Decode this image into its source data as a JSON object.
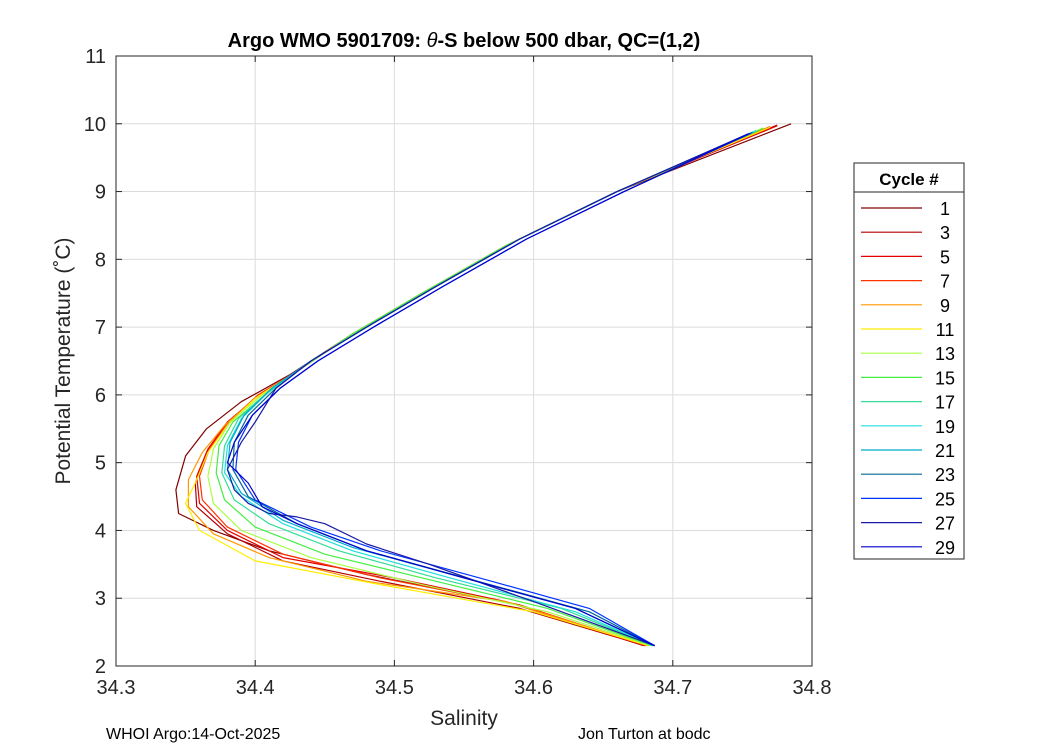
{
  "chart_data": {
    "type": "line",
    "title_prefix": "Argo WMO 5901709: ",
    "title_theta": "θ",
    "title_suffix": "-S below 500 dbar,  QC=(1,2)",
    "xlabel": "Salinity",
    "ylabel": "Potential Temperature (˚C)",
    "xlim": [
      34.3,
      34.8
    ],
    "ylim": [
      2,
      11
    ],
    "xticks": [
      "34.3",
      "34.4",
      "34.5",
      "34.6",
      "34.7",
      "34.8"
    ],
    "yticks": [
      "2",
      "3",
      "4",
      "5",
      "6",
      "7",
      "8",
      "9",
      "10",
      "11"
    ],
    "grid": true,
    "legend_title": "Cycle #",
    "legend_placement": "right-outside",
    "series": [
      {
        "name": "1",
        "color": "#800000",
        "values": [
          [
            34.679,
            2.3
          ],
          [
            34.59,
            2.9
          ],
          [
            34.48,
            3.35
          ],
          [
            34.41,
            3.7
          ],
          [
            34.37,
            4.0
          ],
          [
            34.345,
            4.25
          ],
          [
            34.343,
            4.6
          ],
          [
            34.35,
            5.1
          ],
          [
            34.365,
            5.5
          ],
          [
            34.39,
            5.9
          ],
          [
            34.425,
            6.3
          ],
          [
            34.47,
            6.9
          ],
          [
            34.52,
            7.5
          ],
          [
            34.58,
            8.2
          ],
          [
            34.66,
            9.0
          ],
          [
            34.785,
            10.0
          ]
        ]
      },
      {
        "name": "3",
        "color": "#b30000",
        "values": [
          [
            34.68,
            2.3
          ],
          [
            34.59,
            2.85
          ],
          [
            34.49,
            3.25
          ],
          [
            34.42,
            3.55
          ],
          [
            34.38,
            3.95
          ],
          [
            34.358,
            4.35
          ],
          [
            34.357,
            4.7
          ],
          [
            34.365,
            5.15
          ],
          [
            34.378,
            5.55
          ],
          [
            34.4,
            5.95
          ],
          [
            34.43,
            6.35
          ],
          [
            34.47,
            6.9
          ],
          [
            34.52,
            7.5
          ],
          [
            34.58,
            8.2
          ],
          [
            34.66,
            9.0
          ],
          [
            34.775,
            9.98
          ]
        ]
      },
      {
        "name": "5",
        "color": "#e60000",
        "values": [
          [
            34.68,
            2.3
          ],
          [
            34.58,
            2.95
          ],
          [
            34.5,
            3.3
          ],
          [
            34.42,
            3.6
          ],
          [
            34.38,
            4.0
          ],
          [
            34.36,
            4.4
          ],
          [
            34.358,
            4.8
          ],
          [
            34.366,
            5.2
          ],
          [
            34.38,
            5.6
          ],
          [
            34.4,
            5.95
          ],
          [
            34.43,
            6.35
          ],
          [
            34.47,
            6.9
          ],
          [
            34.52,
            7.5
          ],
          [
            34.58,
            8.2
          ],
          [
            34.66,
            9.0
          ],
          [
            34.775,
            9.97
          ]
        ]
      },
      {
        "name": "7",
        "color": "#ff3300",
        "values": [
          [
            34.681,
            2.3
          ],
          [
            34.59,
            2.9
          ],
          [
            34.49,
            3.3
          ],
          [
            34.42,
            3.65
          ],
          [
            34.38,
            4.05
          ],
          [
            34.362,
            4.45
          ],
          [
            34.36,
            4.8
          ],
          [
            34.367,
            5.2
          ],
          [
            34.381,
            5.6
          ],
          [
            34.402,
            6.0
          ],
          [
            34.43,
            6.35
          ],
          [
            34.47,
            6.9
          ],
          [
            34.52,
            7.5
          ],
          [
            34.58,
            8.2
          ],
          [
            34.66,
            9.0
          ],
          [
            34.77,
            9.96
          ]
        ]
      },
      {
        "name": "9",
        "color": "#ff9900",
        "values": [
          [
            34.682,
            2.3
          ],
          [
            34.58,
            2.95
          ],
          [
            34.48,
            3.25
          ],
          [
            34.41,
            3.6
          ],
          [
            34.37,
            3.95
          ],
          [
            34.352,
            4.35
          ],
          [
            34.352,
            4.75
          ],
          [
            34.362,
            5.15
          ],
          [
            34.378,
            5.55
          ],
          [
            34.4,
            5.95
          ],
          [
            34.43,
            6.35
          ],
          [
            34.47,
            6.9
          ],
          [
            34.52,
            7.5
          ],
          [
            34.58,
            8.2
          ],
          [
            34.66,
            9.0
          ],
          [
            34.77,
            9.95
          ]
        ]
      },
      {
        "name": "11",
        "color": "#ffee00",
        "values": [
          [
            34.683,
            2.3
          ],
          [
            34.6,
            2.8
          ],
          [
            34.49,
            3.2
          ],
          [
            34.4,
            3.55
          ],
          [
            34.36,
            4.0
          ],
          [
            34.35,
            4.4
          ],
          [
            34.358,
            4.75
          ],
          [
            34.366,
            5.15
          ],
          [
            34.38,
            5.55
          ],
          [
            34.4,
            5.95
          ],
          [
            34.43,
            6.35
          ],
          [
            34.47,
            6.9
          ],
          [
            34.52,
            7.5
          ],
          [
            34.58,
            8.2
          ],
          [
            34.66,
            9.0
          ],
          [
            34.77,
            9.95
          ]
        ]
      },
      {
        "name": "13",
        "color": "#aaff44",
        "values": [
          [
            34.684,
            2.3
          ],
          [
            34.61,
            2.8
          ],
          [
            34.52,
            3.2
          ],
          [
            34.44,
            3.6
          ],
          [
            34.39,
            4.0
          ],
          [
            34.37,
            4.4
          ],
          [
            34.366,
            4.8
          ],
          [
            34.37,
            5.2
          ],
          [
            34.382,
            5.6
          ],
          [
            34.402,
            5.95
          ],
          [
            34.43,
            6.35
          ],
          [
            34.47,
            6.9
          ],
          [
            34.52,
            7.5
          ],
          [
            34.58,
            8.2
          ],
          [
            34.66,
            9.0
          ],
          [
            34.765,
            9.94
          ]
        ]
      },
      {
        "name": "15",
        "color": "#44ee44",
        "values": [
          [
            34.685,
            2.3
          ],
          [
            34.61,
            2.85
          ],
          [
            34.52,
            3.3
          ],
          [
            34.45,
            3.65
          ],
          [
            34.4,
            4.05
          ],
          [
            34.378,
            4.45
          ],
          [
            34.372,
            4.85
          ],
          [
            34.374,
            5.25
          ],
          [
            34.384,
            5.6
          ],
          [
            34.404,
            5.95
          ],
          [
            34.43,
            6.35
          ],
          [
            34.47,
            6.9
          ],
          [
            34.52,
            7.5
          ],
          [
            34.58,
            8.2
          ],
          [
            34.66,
            9.0
          ],
          [
            34.765,
            9.93
          ]
        ]
      },
      {
        "name": "17",
        "color": "#33dd99",
        "values": [
          [
            34.686,
            2.3
          ],
          [
            34.62,
            2.85
          ],
          [
            34.53,
            3.3
          ],
          [
            34.46,
            3.7
          ],
          [
            34.41,
            4.1
          ],
          [
            34.385,
            4.45
          ],
          [
            34.376,
            4.85
          ],
          [
            34.378,
            5.25
          ],
          [
            34.388,
            5.65
          ],
          [
            34.41,
            6.05
          ],
          [
            34.44,
            6.5
          ],
          [
            34.48,
            7.0
          ],
          [
            34.53,
            7.6
          ],
          [
            34.59,
            8.3
          ],
          [
            34.66,
            9.0
          ],
          [
            34.76,
            9.9
          ]
        ]
      },
      {
        "name": "19",
        "color": "#22dddd",
        "values": [
          [
            34.686,
            2.3
          ],
          [
            34.63,
            2.8
          ],
          [
            34.54,
            3.3
          ],
          [
            34.47,
            3.7
          ],
          [
            34.42,
            4.1
          ],
          [
            34.39,
            4.5
          ],
          [
            34.378,
            4.85
          ],
          [
            34.38,
            5.25
          ],
          [
            34.39,
            5.65
          ],
          [
            34.41,
            6.05
          ],
          [
            34.44,
            6.5
          ],
          [
            34.48,
            7.0
          ],
          [
            34.53,
            7.6
          ],
          [
            34.59,
            8.3
          ],
          [
            34.66,
            9.0
          ],
          [
            34.76,
            9.9
          ]
        ]
      },
      {
        "name": "21",
        "color": "#00aacc",
        "values": [
          [
            34.686,
            2.3
          ],
          [
            34.63,
            2.85
          ],
          [
            34.55,
            3.3
          ],
          [
            34.47,
            3.75
          ],
          [
            34.42,
            4.15
          ],
          [
            34.39,
            4.55
          ],
          [
            34.38,
            4.9
          ],
          [
            34.382,
            5.3
          ],
          [
            34.392,
            5.7
          ],
          [
            34.412,
            6.1
          ],
          [
            34.44,
            6.5
          ],
          [
            34.48,
            7.0
          ],
          [
            34.53,
            7.6
          ],
          [
            34.59,
            8.3
          ],
          [
            34.66,
            9.0
          ],
          [
            34.758,
            9.88
          ]
        ]
      },
      {
        "name": "23",
        "color": "#006699",
        "values": [
          [
            34.687,
            2.3
          ],
          [
            34.64,
            2.8
          ],
          [
            34.56,
            3.25
          ],
          [
            34.48,
            3.7
          ],
          [
            34.43,
            4.1
          ],
          [
            34.395,
            4.5
          ],
          [
            34.384,
            4.9
          ],
          [
            34.385,
            5.3
          ],
          [
            34.395,
            5.7
          ],
          [
            34.415,
            6.1
          ],
          [
            34.44,
            6.5
          ],
          [
            34.48,
            7.0
          ],
          [
            34.53,
            7.6
          ],
          [
            34.59,
            8.3
          ],
          [
            34.66,
            9.0
          ],
          [
            34.757,
            9.87
          ]
        ]
      },
      {
        "name": "25",
        "color": "#0033ff",
        "values": [
          [
            34.687,
            2.3
          ],
          [
            34.64,
            2.85
          ],
          [
            34.57,
            3.25
          ],
          [
            34.49,
            3.7
          ],
          [
            34.44,
            4.05
          ],
          [
            34.4,
            4.45
          ],
          [
            34.386,
            4.9
          ],
          [
            34.388,
            5.3
          ],
          [
            34.398,
            5.7
          ],
          [
            34.418,
            6.1
          ],
          [
            34.445,
            6.5
          ],
          [
            34.485,
            7.0
          ],
          [
            34.535,
            7.6
          ],
          [
            34.595,
            8.3
          ],
          [
            34.665,
            9.0
          ],
          [
            34.756,
            9.86
          ]
        ]
      },
      {
        "name": "27",
        "color": "#1a1aa6",
        "values": [
          [
            34.687,
            2.3
          ],
          [
            34.6,
            2.95
          ],
          [
            34.525,
            3.5
          ],
          [
            34.51,
            3.6
          ],
          [
            34.48,
            3.8
          ],
          [
            34.45,
            4.1
          ],
          [
            34.43,
            4.2
          ],
          [
            34.41,
            4.25
          ],
          [
            34.395,
            4.4
          ],
          [
            34.385,
            4.6
          ],
          [
            34.38,
            4.9
          ],
          [
            34.39,
            5.3
          ],
          [
            34.4,
            5.6
          ],
          [
            34.415,
            6.1
          ],
          [
            34.44,
            6.5
          ],
          [
            34.48,
            7.0
          ],
          [
            34.53,
            7.6
          ],
          [
            34.59,
            8.3
          ],
          [
            34.66,
            9.0
          ],
          [
            34.755,
            9.86
          ]
        ]
      },
      {
        "name": "29",
        "color": "#0000cc",
        "values": [
          [
            34.687,
            2.3
          ],
          [
            34.63,
            2.85
          ],
          [
            34.55,
            3.3
          ],
          [
            34.48,
            3.7
          ],
          [
            34.43,
            4.1
          ],
          [
            34.405,
            4.35
          ],
          [
            34.395,
            4.7
          ],
          [
            34.38,
            5.0
          ],
          [
            34.385,
            5.3
          ],
          [
            34.398,
            5.7
          ],
          [
            34.418,
            6.1
          ],
          [
            34.445,
            6.5
          ],
          [
            34.485,
            7.0
          ],
          [
            34.535,
            7.6
          ],
          [
            34.595,
            8.3
          ],
          [
            34.665,
            9.0
          ],
          [
            34.754,
            9.85
          ]
        ]
      }
    ]
  },
  "footer": {
    "left": "WHOI Argo:14-Oct-2025",
    "right": "Jon Turton at bodc"
  }
}
